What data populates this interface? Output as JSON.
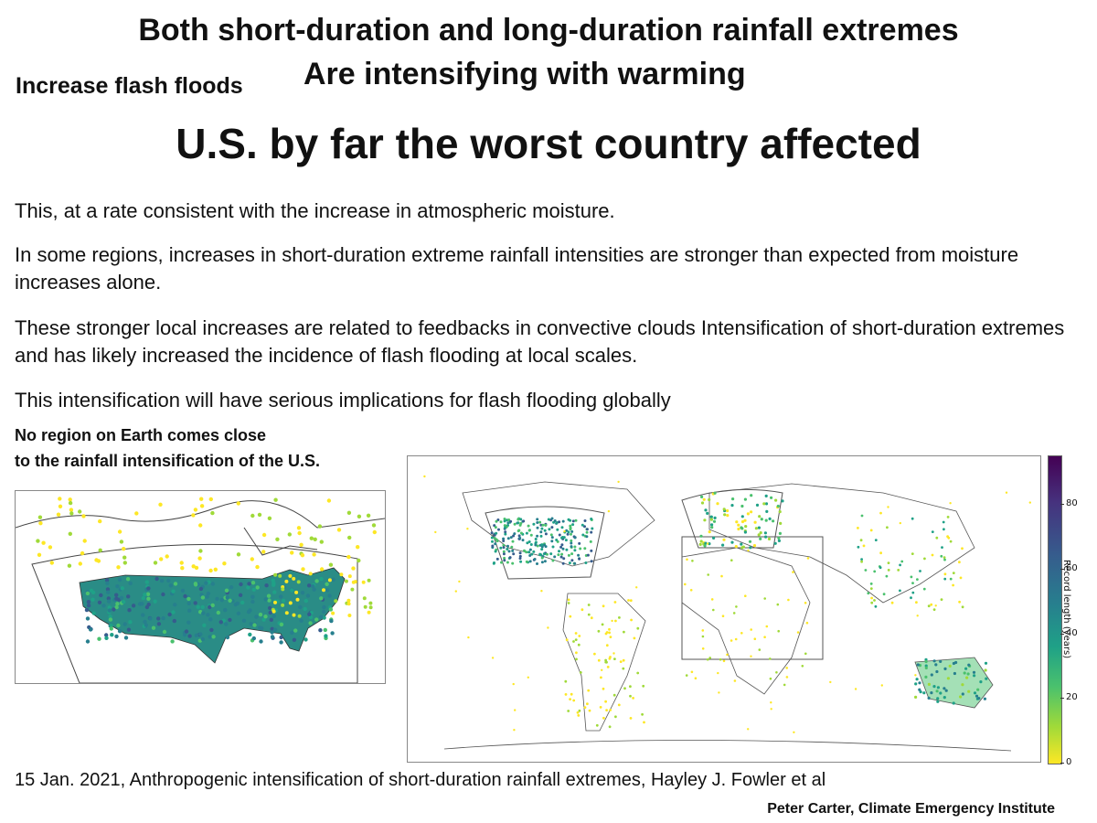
{
  "header": {
    "title_line1": "Both short-duration and long-duration rainfall extremes",
    "title_line2": "Are intensifying with warming",
    "side_heading": "Increase flash floods",
    "headline": "U.S. by far the worst country  affected"
  },
  "body": {
    "paragraphs": [
      "This, at a rate consistent with the increase in atmospheric moisture.",
      "In some regions, increases in short-duration extreme rainfall intensities are stronger than expected from moisture increases alone.",
      "These stronger local increases are related to feedbacks in convective clouds Intensification of short-duration extremes and has likely increased the incidence of flash flooding at local scales.",
      "This intensification will have serious implications for flash flooding globally"
    ],
    "note_line1": "No region on Earth comes close",
    "note_line2": "to the rainfall intensification of the U.S."
  },
  "maps": {
    "colorbar": {
      "label": "Record length (years)",
      "ticks": [
        "0",
        "20",
        "40",
        "60",
        "80"
      ],
      "colors": [
        "#fde725",
        "#a0da39",
        "#4ac16d",
        "#1fa187",
        "#277f8e",
        "#365c8d",
        "#46327e",
        "#440154"
      ]
    }
  },
  "footer": {
    "citation": "15 Jan. 2021, Anthropogenic intensification of short-duration rainfall extremes, Hayley J. Fowler et al",
    "credit": "Peter Carter,  Climate Emergency Institute"
  }
}
